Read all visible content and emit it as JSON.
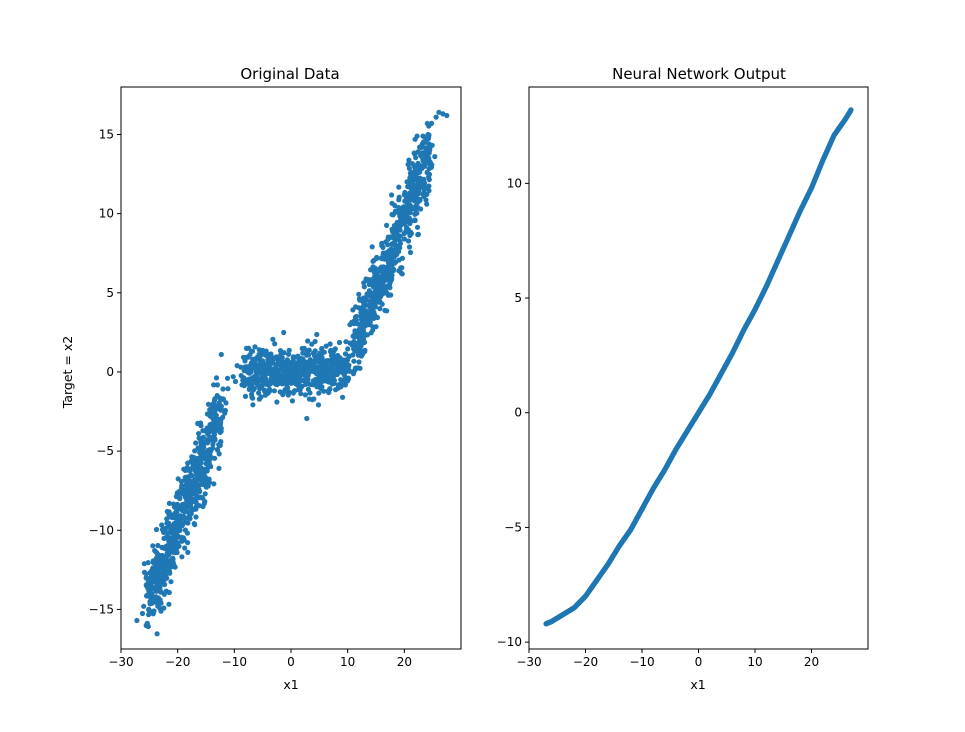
{
  "chart_data": [
    {
      "type": "scatter",
      "title": "Original Data",
      "xlabel": "x1",
      "ylabel": "Target = x2",
      "xlim": [
        -30,
        30
      ],
      "ylim": [
        -17.5,
        18
      ],
      "x_ticks": [
        -30,
        -20,
        -10,
        0,
        10,
        20
      ],
      "y_ticks": [
        -15,
        -10,
        -5,
        0,
        5,
        10,
        15
      ],
      "x_tick_labels": [
        "−30",
        "−20",
        "−10",
        "0",
        "10",
        "20"
      ],
      "y_tick_labels": [
        "−15",
        "−10",
        "−5",
        "0",
        "5",
        "10",
        "15"
      ],
      "grid": false,
      "color": "#1f77b4",
      "clusters": [
        {
          "x_range": [
            -25,
            -12
          ],
          "y_center_at_x_min": -14.5,
          "y_center_at_x_max": -2.0,
          "spread": 1.1
        },
        {
          "x_range": [
            -8,
            10
          ],
          "y_center_at_x_min": 0.0,
          "y_center_at_x_max": 0.0,
          "spread": 0.75
        },
        {
          "x_range": [
            11,
            24.5
          ],
          "y_center_at_x_min": 1.5,
          "y_center_at_x_max": 14.0,
          "spread": 1.1
        }
      ],
      "points": [
        {
          "x": -27.2,
          "y": -15.7
        },
        {
          "x": -26.0,
          "y": -14.8
        },
        {
          "x": -25.1,
          "y": -15.0
        },
        {
          "x": -24.5,
          "y": -14.6
        },
        {
          "x": -23.8,
          "y": -14.2
        },
        {
          "x": -23.1,
          "y": -14.4
        },
        {
          "x": -12.3,
          "y": 1.1
        },
        {
          "x": -10.2,
          "y": -0.3
        },
        {
          "x": -9.5,
          "y": 0.4
        },
        {
          "x": -9.8,
          "y": -0.6
        },
        {
          "x": 9.1,
          "y": -1.6
        },
        {
          "x": 10.3,
          "y": 1.0
        },
        {
          "x": 10.9,
          "y": 3.1
        },
        {
          "x": 11.3,
          "y": 2.6
        },
        {
          "x": 24.8,
          "y": 15.7
        },
        {
          "x": 25.6,
          "y": 16.1
        },
        {
          "x": 26.1,
          "y": 16.4
        },
        {
          "x": 27.5,
          "y": 16.2
        },
        {
          "x": 26.8,
          "y": 16.3
        },
        {
          "x": 24.2,
          "y": 15.0
        }
      ]
    },
    {
      "type": "scatter",
      "title": "Neural Network Output",
      "xlabel": "x1",
      "ylabel": "",
      "xlim": [
        -30,
        30
      ],
      "ylim": [
        -10.3,
        14.2
      ],
      "x_ticks": [
        -30,
        -20,
        -10,
        0,
        10,
        20
      ],
      "y_ticks": [
        -10,
        -5,
        0,
        5,
        10
      ],
      "x_tick_labels": [
        "−30",
        "−20",
        "−10",
        "0",
        "10",
        "20"
      ],
      "y_tick_labels": [
        "−10",
        "−5",
        "0",
        "5",
        "10"
      ],
      "grid": false,
      "color": "#1f77b4",
      "curve_points": [
        {
          "x": -27,
          "y": -9.2
        },
        {
          "x": -26,
          "y": -9.1
        },
        {
          "x": -24,
          "y": -8.8
        },
        {
          "x": -22,
          "y": -8.5
        },
        {
          "x": -20,
          "y": -8.0
        },
        {
          "x": -18,
          "y": -7.3
        },
        {
          "x": -16,
          "y": -6.6
        },
        {
          "x": -14,
          "y": -5.8
        },
        {
          "x": -12,
          "y": -5.1
        },
        {
          "x": -10,
          "y": -4.2
        },
        {
          "x": -8,
          "y": -3.3
        },
        {
          "x": -6,
          "y": -2.5
        },
        {
          "x": -4,
          "y": -1.6
        },
        {
          "x": -2,
          "y": -0.8
        },
        {
          "x": 0,
          "y": 0.0
        },
        {
          "x": 2,
          "y": 0.8
        },
        {
          "x": 4,
          "y": 1.7
        },
        {
          "x": 6,
          "y": 2.6
        },
        {
          "x": 8,
          "y": 3.6
        },
        {
          "x": 10,
          "y": 4.5
        },
        {
          "x": 12,
          "y": 5.5
        },
        {
          "x": 14,
          "y": 6.6
        },
        {
          "x": 16,
          "y": 7.7
        },
        {
          "x": 18,
          "y": 8.8
        },
        {
          "x": 20,
          "y": 9.8
        },
        {
          "x": 22,
          "y": 11.0
        },
        {
          "x": 24,
          "y": 12.1
        },
        {
          "x": 26,
          "y": 12.8
        },
        {
          "x": 27,
          "y": 13.2
        }
      ]
    }
  ]
}
